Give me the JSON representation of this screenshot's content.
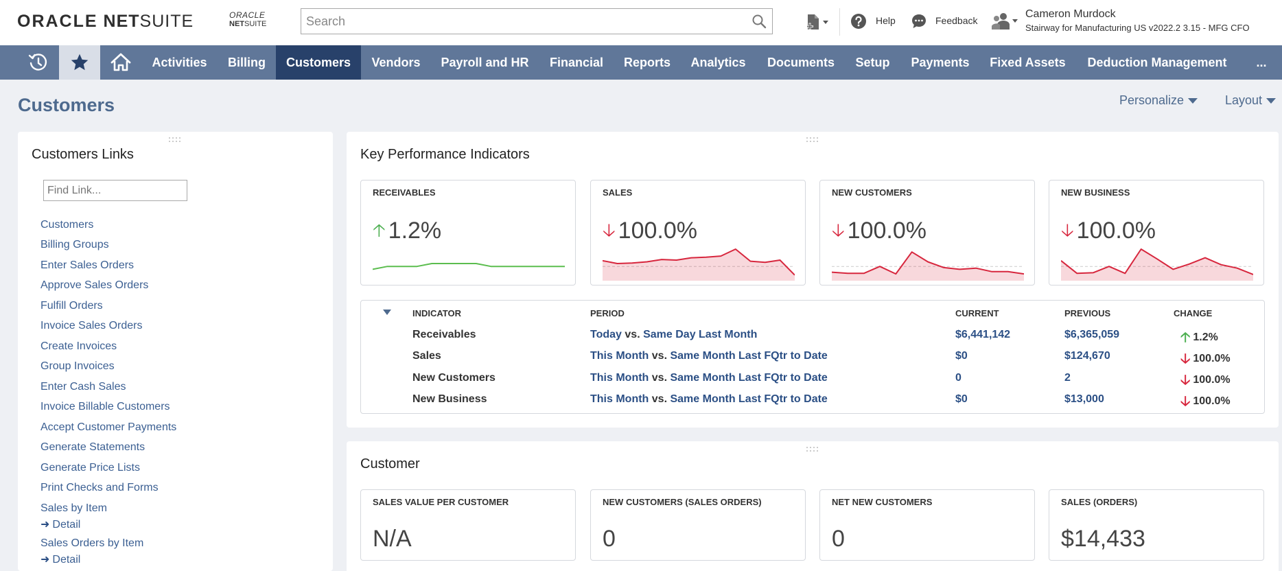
{
  "header": {
    "logo_oracle": "ORACLE",
    "logo_net": "NET",
    "logo_suite": "SUITE",
    "small_logo_line1": "ORACLE",
    "small_logo_net": "NET",
    "small_logo_suite": "SUITE",
    "search_placeholder": "Search",
    "help_label": "Help",
    "feedback_label": "Feedback",
    "user_name": "Cameron Murdock",
    "user_role": "Stairway for Manufacturing US v2022.2 3.15 - MFG CFO"
  },
  "nav": {
    "items": [
      {
        "label": "Activities"
      },
      {
        "label": "Billing"
      },
      {
        "label": "Customers",
        "active": true
      },
      {
        "label": "Vendors"
      },
      {
        "label": "Payroll and HR"
      },
      {
        "label": "Financial"
      },
      {
        "label": "Reports"
      },
      {
        "label": "Analytics"
      },
      {
        "label": "Documents"
      },
      {
        "label": "Setup"
      },
      {
        "label": "Payments"
      },
      {
        "label": "Fixed Assets"
      },
      {
        "label": "Deduction Management"
      }
    ],
    "more_label": "..."
  },
  "page": {
    "title": "Customers",
    "personalize_label": "Personalize",
    "layout_label": "Layout"
  },
  "links_portlet": {
    "title": "Customers Links",
    "find_placeholder": "Find Link...",
    "links": [
      "Customers",
      "Billing Groups",
      "Enter Sales Orders",
      "Approve Sales Orders",
      "Fulfill Orders",
      "Invoice Sales Orders",
      "Create Invoices",
      "Group Invoices",
      "Enter Cash Sales",
      "Invoice Billable Customers",
      "Accept Customer Payments",
      "Generate Statements",
      "Generate Price Lists",
      "Print Checks and Forms",
      "Sales by Item",
      "Sales Orders by Item"
    ],
    "detail_label": "Detail"
  },
  "kpi_portlet": {
    "title": "Key Performance Indicators",
    "tiles": [
      {
        "label": "RECEIVABLES",
        "value": "1.2%",
        "direction": "up",
        "spark": [
          3,
          4,
          4,
          4,
          5,
          5,
          5,
          5,
          4,
          4,
          4,
          4,
          4,
          4
        ],
        "color": "#5bbd4e"
      },
      {
        "label": "SALES",
        "value": "100.0%",
        "direction": "down",
        "spark": [
          6,
          5,
          5.2,
          5.6,
          6.4,
          6.2,
          7,
          7.2,
          7.6,
          10,
          5.8,
          5.4,
          6.2,
          1
        ],
        "color": "#d7263d"
      },
      {
        "label": "NEW CUSTOMERS",
        "value": "100.0%",
        "direction": "down",
        "spark": [
          2,
          1.6,
          1.6,
          4,
          1.4,
          9,
          5.6,
          3.6,
          3,
          3.4,
          2.2,
          2.2,
          1.4
        ],
        "color": "#d7263d"
      },
      {
        "label": "NEW BUSINESS",
        "value": "100.0%",
        "direction": "down",
        "spark": [
          6,
          1.6,
          1.8,
          4,
          1.6,
          10,
          6.6,
          3,
          4.8,
          7,
          4.6,
          3.4,
          1.2
        ],
        "color": "#d7263d"
      }
    ],
    "table": {
      "headers": {
        "indicator": "INDICATOR",
        "period": "PERIOD",
        "current": "CURRENT",
        "previous": "PREVIOUS",
        "change": "CHANGE"
      },
      "vs_label": "vs.",
      "rows": [
        {
          "indicator": "Receivables",
          "period_a": "Today",
          "period_b": "Same Day Last Month",
          "current": "$6,441,142",
          "previous": "$6,365,059",
          "change": "1.2%",
          "direction": "up"
        },
        {
          "indicator": "Sales",
          "period_a": "This Month",
          "period_b": "Same Month Last FQtr to Date",
          "current": "$0",
          "previous": "$124,670",
          "change": "100.0%",
          "direction": "down"
        },
        {
          "indicator": "New Customers",
          "period_a": "This Month",
          "period_b": "Same Month Last FQtr to Date",
          "current": "0",
          "previous": "2",
          "change": "100.0%",
          "direction": "down"
        },
        {
          "indicator": "New Business",
          "period_a": "This Month",
          "period_b": "Same Month Last FQtr to Date",
          "current": "$0",
          "previous": "$13,000",
          "change": "100.0%",
          "direction": "down"
        }
      ]
    }
  },
  "customer_portlet": {
    "title": "Customer",
    "tiles": [
      {
        "label": "SALES VALUE PER CUSTOMER",
        "value": "N/A"
      },
      {
        "label": "NEW CUSTOMERS (SALES ORDERS)",
        "value": "0"
      },
      {
        "label": "NET NEW CUSTOMERS",
        "value": "0"
      },
      {
        "label": "SALES (ORDERS)",
        "value": "$14,433"
      }
    ]
  },
  "colors": {
    "nav_bg": "#607799",
    "nav_active": "#28416a",
    "link": "#3b5f92",
    "up": "#4caf50",
    "down": "#d7263d"
  }
}
